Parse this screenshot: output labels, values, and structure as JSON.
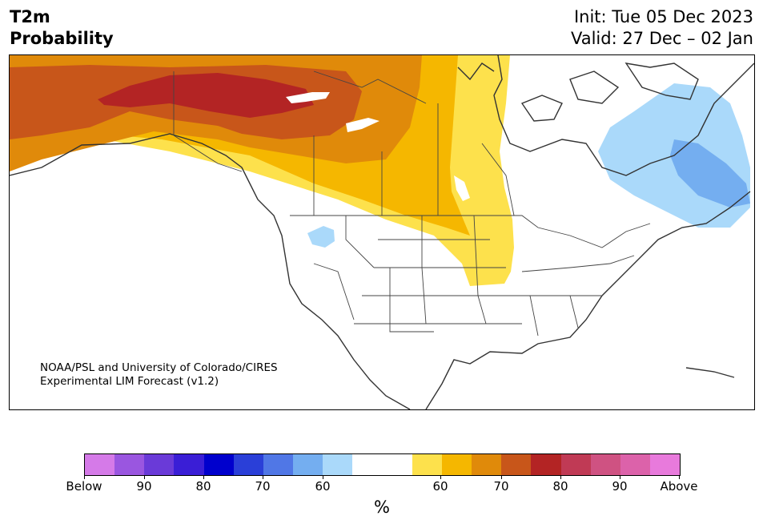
{
  "header": {
    "title_line1": "T2m",
    "title_line2": "Probability",
    "init_label": "Init: Tue 05 Dec 2023",
    "valid_label": "Valid: 27 Dec – 02 Jan"
  },
  "credit": {
    "line1": "NOAA/PSL and University of Colorado/CIRES",
    "line2": "Experimental LIM Forecast (v1.2)"
  },
  "colorbar": {
    "colors": [
      "#d57ae8",
      "#9a56e0",
      "#6a3ad8",
      "#3a1ed6",
      "#0000cd",
      "#2a3fd8",
      "#5077e6",
      "#74aef0",
      "#aad9fa",
      "#ffffff",
      "#ffffff",
      "#fde14c",
      "#f5b700",
      "#e08a0a",
      "#c8561a",
      "#b32424",
      "#c03a55",
      "#cf5282",
      "#dc62aa",
      "#e87adc"
    ],
    "ticks": [
      "Below",
      "90",
      "80",
      "70",
      "60",
      "60",
      "70",
      "80",
      "90",
      "Above"
    ],
    "unit": "%"
  },
  "map_colors": {
    "p70_above": "#c8561a",
    "p80_above": "#b32424",
    "p65_above": "#e08a0a",
    "p60_above": "#f5b700",
    "p55_above": "#fde14c",
    "p55_below": "#aad9fa",
    "p60_below": "#74aef0"
  }
}
